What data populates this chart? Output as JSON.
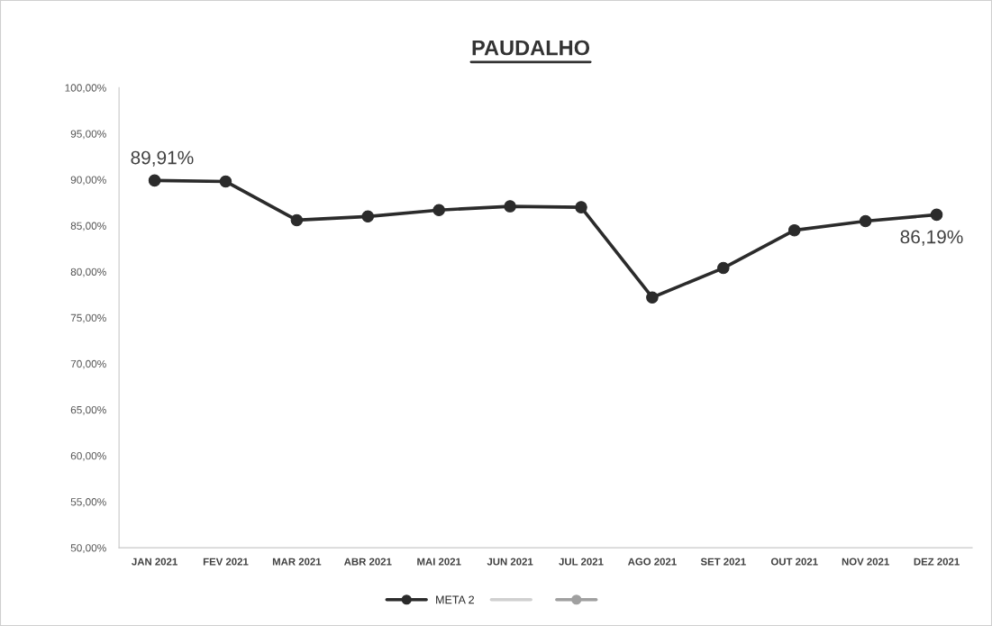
{
  "chart_data": {
    "type": "line",
    "title": "PAUDALHO",
    "categories": [
      "JAN 2021",
      "FEV 2021",
      "MAR 2021",
      "ABR 2021",
      "MAI 2021",
      "JUN 2021",
      "JUL 2021",
      "AGO 2021",
      "SET 2021",
      "OUT 2021",
      "NOV 2021",
      "DEZ 2021"
    ],
    "series": [
      {
        "name": "META 2",
        "color": "#2b2b2b",
        "marker": "circle",
        "values": [
          89.91,
          89.8,
          85.6,
          86.0,
          86.7,
          87.1,
          87.0,
          77.2,
          80.4,
          84.5,
          85.5,
          86.19
        ],
        "value_labels": [
          "89,91%",
          null,
          null,
          null,
          null,
          null,
          null,
          null,
          null,
          null,
          null,
          "86,19%"
        ]
      },
      {
        "color": "#d0d0d0",
        "marker": "none",
        "values": [
          null,
          null,
          null,
          null,
          null,
          null,
          null,
          null,
          null,
          null,
          null,
          null
        ]
      },
      {
        "color": "#a0a0a0",
        "marker": "circle",
        "values": [
          null,
          null,
          null,
          null,
          null,
          null,
          null,
          null,
          null,
          null,
          null,
          null
        ]
      }
    ],
    "ylim": [
      50,
      100
    ],
    "yticks": [
      {
        "value": 50,
        "label": "50,00%"
      },
      {
        "value": 55,
        "label": "55,00%"
      },
      {
        "value": 60,
        "label": "60,00%"
      },
      {
        "value": 65,
        "label": "65,00%"
      },
      {
        "value": 70,
        "label": "70,00%"
      },
      {
        "value": 75,
        "label": "75,00%"
      },
      {
        "value": 80,
        "label": "80,00%"
      },
      {
        "value": 85,
        "label": "85,00%"
      },
      {
        "value": 90,
        "label": "90,00%"
      },
      {
        "value": 95,
        "label": "95,00%"
      },
      {
        "value": 100,
        "label": "100,00%"
      }
    ],
    "grid": false,
    "legend": "bottom"
  }
}
